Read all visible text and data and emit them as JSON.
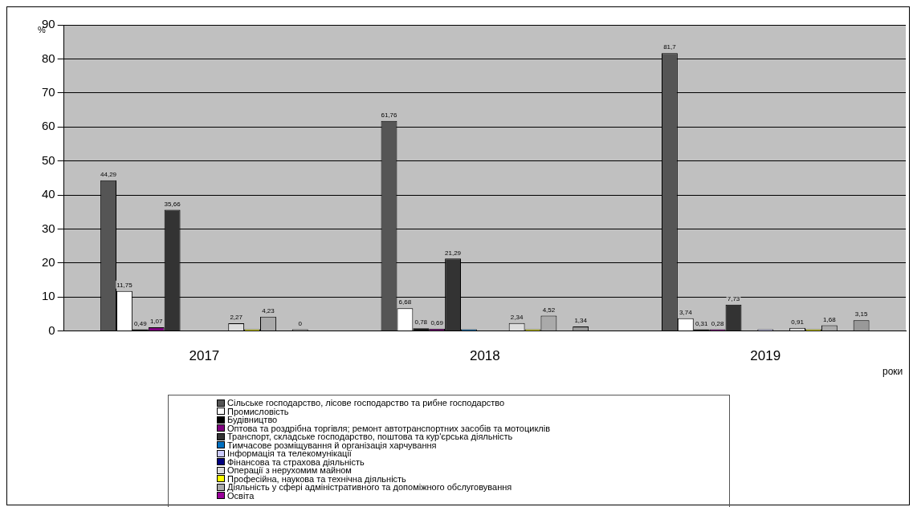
{
  "chart_data": {
    "type": "bar",
    "categories": [
      "2017",
      "2018",
      "2019"
    ],
    "xlabel": "роки",
    "ylabel": "%",
    "ylim": [
      0,
      90
    ],
    "yticks": [
      0,
      10,
      20,
      30,
      40,
      50,
      60,
      70,
      80,
      90
    ],
    "grid": "y",
    "legend": "bottom",
    "series": [
      {
        "name": "Сільське господарство, лісове господарство та рибне господарство",
        "color": "#555555",
        "values": [
          44.29,
          61.76,
          81.7
        ],
        "value_labels": [
          "44,29",
          "61,76",
          "81,7"
        ]
      },
      {
        "name": "Промисловість",
        "color": "#ffffff",
        "values": [
          11.75,
          6.68,
          3.74
        ],
        "value_labels": [
          "11,75",
          "6,68",
          "3,74"
        ]
      },
      {
        "name": "Будівництво",
        "color": "#000000",
        "values": [
          0.49,
          0.78,
          0.31
        ],
        "value_labels": [
          "0,49",
          "0,78",
          "0,31"
        ]
      },
      {
        "name": "Оптова та роздрібна торгівля; ремонт автотранспортних засобів та мотоциклів",
        "color": "#800080",
        "values": [
          1.07,
          0.69,
          0.28
        ],
        "value_labels": [
          "1,07",
          "0,69",
          "0,28"
        ]
      },
      {
        "name": "Транспорт, складське господарство, поштова та кур'єрська діяльність",
        "color": "#333333",
        "values": [
          35.66,
          21.29,
          7.73
        ],
        "value_labels": [
          "35,66",
          "21,29",
          "7,73"
        ]
      },
      {
        "name": "Тимчасове розміщування й організація харчування",
        "color": "#0070c0",
        "values": [
          null,
          0.2,
          null
        ],
        "value_labels": [
          null,
          null,
          null
        ]
      },
      {
        "name": "Інформація та телекомунікації",
        "color": "#ccccff",
        "values": [
          null,
          null,
          0.2
        ],
        "value_labels": [
          null,
          null,
          null
        ]
      },
      {
        "name": "Фінансова та страхова діяльність",
        "color": "#000080",
        "values": [
          null,
          null,
          null
        ],
        "value_labels": [
          null,
          null,
          null
        ]
      },
      {
        "name": "Операції з нерухомим майном",
        "color": "#dddddd",
        "values": [
          2.27,
          2.34,
          0.91
        ],
        "value_labels": [
          "2,27",
          "2,34",
          "0,91"
        ]
      },
      {
        "name": "Професійна, наукова та технічна діяльність",
        "color": "#ffff00",
        "values": [
          0.1,
          0.1,
          0.1
        ],
        "value_labels": [
          null,
          null,
          null
        ]
      },
      {
        "name": "Діяльність у сфері адміністративного та допоміжного обслуговування",
        "color": "#aaaaaa",
        "values": [
          4.23,
          4.52,
          1.68
        ],
        "value_labels": [
          "4,23",
          "4,52",
          "1,68"
        ]
      },
      {
        "name": "Освіта",
        "color": "#990099",
        "values": [
          null,
          null,
          null
        ],
        "value_labels": [
          null,
          null,
          null
        ]
      },
      {
        "color": "#999999",
        "values": [
          0,
          1.34,
          3.15
        ],
        "value_labels": [
          "0",
          "1,34",
          "3,15"
        ]
      }
    ]
  }
}
